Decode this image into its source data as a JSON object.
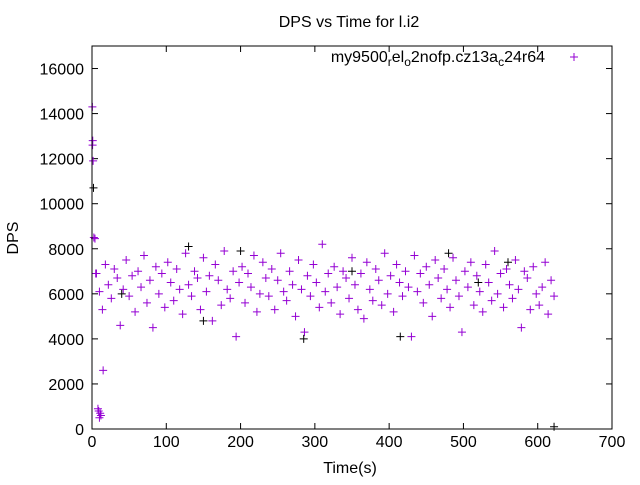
{
  "chart_data": {
    "type": "scatter",
    "title": "DPS vs Time for l.i2",
    "xlabel": "Time(s)",
    "ylabel": "DPS",
    "xlim": [
      0,
      700
    ],
    "ylim": [
      0,
      17000
    ],
    "xticks": [
      0,
      100,
      200,
      300,
      400,
      500,
      600,
      700
    ],
    "yticks": [
      0,
      2000,
      4000,
      6000,
      8000,
      10000,
      12000,
      14000,
      16000
    ],
    "grid": false,
    "legend_position": "top-right",
    "legend": {
      "label": "my9500_rel_o2nofp.cz13a_c24r64",
      "parts": [
        {
          "text": "my9500",
          "sub": false
        },
        {
          "text": "r",
          "sub": true
        },
        {
          "text": "el",
          "sub": false
        },
        {
          "text": "o",
          "sub": true
        },
        {
          "text": "2nofp.cz13a",
          "sub": false
        },
        {
          "text": "c",
          "sub": true
        },
        {
          "text": "24r64",
          "sub": false
        }
      ]
    },
    "series": [
      {
        "name": "my9500_rel_o2nofp.cz13a_c24r64",
        "color": "#9400d3",
        "early_points": [
          [
            0.5,
            14300
          ],
          [
            1,
            12800
          ],
          [
            0.8,
            12600
          ],
          [
            1.5,
            11900
          ],
          [
            2.5,
            8500
          ],
          [
            4,
            8450
          ],
          [
            5,
            6900
          ],
          [
            8,
            900
          ],
          [
            9,
            800
          ],
          [
            10,
            500
          ],
          [
            11,
            700
          ],
          [
            12,
            600
          ],
          [
            15,
            2600
          ]
        ],
        "x_start": 6,
        "x_step": 4,
        "y": [
          6900,
          6100,
          5300,
          7300,
          6400,
          5800,
          7100,
          6700,
          4600,
          6200,
          7500,
          5900,
          6800,
          5200,
          7000,
          6300,
          7700,
          5600,
          6600,
          4500,
          7200,
          6000,
          6900,
          5400,
          7400,
          6500,
          5700,
          7100,
          6200,
          5100,
          7800,
          6400,
          5900,
          7000,
          6700,
          5300,
          7600,
          6100,
          6800,
          4800,
          7300,
          6600,
          5500,
          7900,
          6200,
          5800,
          7000,
          4100,
          6500,
          7200,
          5600,
          6900,
          6300,
          7700,
          5200,
          6000,
          7400,
          6700,
          5900,
          7100,
          5300,
          6600,
          7800,
          6100,
          5700,
          7000,
          6400,
          5000,
          7500,
          6200,
          4300,
          6800,
          5900,
          7300,
          6500,
          5400,
          8200,
          6100,
          6900,
          5600,
          7200,
          6300,
          5100,
          7000,
          6700,
          5800,
          7600,
          6400,
          5300,
          6900,
          4900,
          7400,
          6200,
          5700,
          7100,
          6600,
          5500,
          7800,
          6000,
          6800,
          5200,
          7300,
          6500,
          5900,
          7000,
          6300,
          4100,
          7700,
          6100,
          6900,
          5600,
          7200,
          6400,
          5000,
          7500,
          6700,
          5800,
          7100,
          6200,
          5400,
          7600,
          6600,
          5900,
          4300,
          7000,
          6300,
          7400,
          5500,
          6800,
          6100,
          5200,
          7300,
          6500,
          5700,
          7900,
          6000,
          6900,
          5400,
          7100,
          6400,
          5800,
          7500,
          6200,
          4500,
          7000,
          6700,
          5300,
          7200,
          6000,
          5500,
          6300,
          7400,
          5100,
          6600,
          5900
        ]
      },
      {
        "name": "unlabeled",
        "color": "#000000",
        "points": [
          [
            2,
            10700
          ],
          [
            622,
            100
          ],
          [
            130,
            8100
          ],
          [
            285,
            4000
          ],
          [
            415,
            4100
          ],
          [
            480,
            7800
          ],
          [
            200,
            7900
          ],
          [
            560,
            7400
          ],
          [
            520,
            6500
          ],
          [
            40,
            6000
          ],
          [
            150,
            4800
          ],
          [
            350,
            7000
          ]
        ]
      }
    ]
  }
}
